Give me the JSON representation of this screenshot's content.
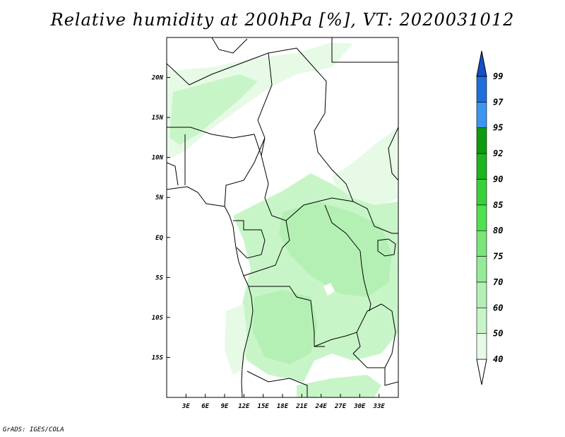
{
  "title": "Relative humidity at 200hPa [%], VT: 2020031012",
  "credit": "GrADS: IGES/COLA",
  "map": {
    "lon_range": [
      0,
      36
    ],
    "lat_range": [
      -20,
      25
    ],
    "lat_ticks": [
      {
        "value": 20,
        "label": "20N"
      },
      {
        "value": 15,
        "label": "15N"
      },
      {
        "value": 10,
        "label": "10N"
      },
      {
        "value": 5,
        "label": "5N"
      },
      {
        "value": 0,
        "label": "EQ"
      },
      {
        "value": -5,
        "label": "5S"
      },
      {
        "value": -10,
        "label": "10S"
      },
      {
        "value": -15,
        "label": "15S"
      }
    ],
    "lon_ticks": [
      {
        "value": 3,
        "label": "3E"
      },
      {
        "value": 6,
        "label": "6E"
      },
      {
        "value": 9,
        "label": "9E"
      },
      {
        "value": 12,
        "label": "12E"
      },
      {
        "value": 15,
        "label": "15E"
      },
      {
        "value": 18,
        "label": "18E"
      },
      {
        "value": 21,
        "label": "21E"
      },
      {
        "value": 24,
        "label": "24E"
      },
      {
        "value": 27,
        "label": "27E"
      },
      {
        "value": 30,
        "label": "30E"
      },
      {
        "value": 33,
        "label": "33E"
      }
    ]
  },
  "colorbar": {
    "levels": [
      {
        "label": "40",
        "color": "#e6fae6"
      },
      {
        "label": "50",
        "color": "#c8f5c8"
      },
      {
        "label": "60",
        "color": "#b4f0b4"
      },
      {
        "label": "70",
        "color": "#96eb96"
      },
      {
        "label": "75",
        "color": "#78e678"
      },
      {
        "label": "80",
        "color": "#50e150"
      },
      {
        "label": "85",
        "color": "#37d237"
      },
      {
        "label": "90",
        "color": "#1eb41e"
      },
      {
        "label": "92",
        "color": "#0f9b0f"
      },
      {
        "label": "95",
        "color": "#3c96f0"
      },
      {
        "label": "97",
        "color": "#1e6edc"
      },
      {
        "label": "99",
        "color": "#1450c8"
      }
    ],
    "lower_extend_color": "#ffffff",
    "upper_extend_color": "#1450c8"
  },
  "colors": {
    "humid_light": "#e6fae6",
    "humid_mid": "#c8f5c8",
    "humid_dark": "#b4f0b4"
  }
}
